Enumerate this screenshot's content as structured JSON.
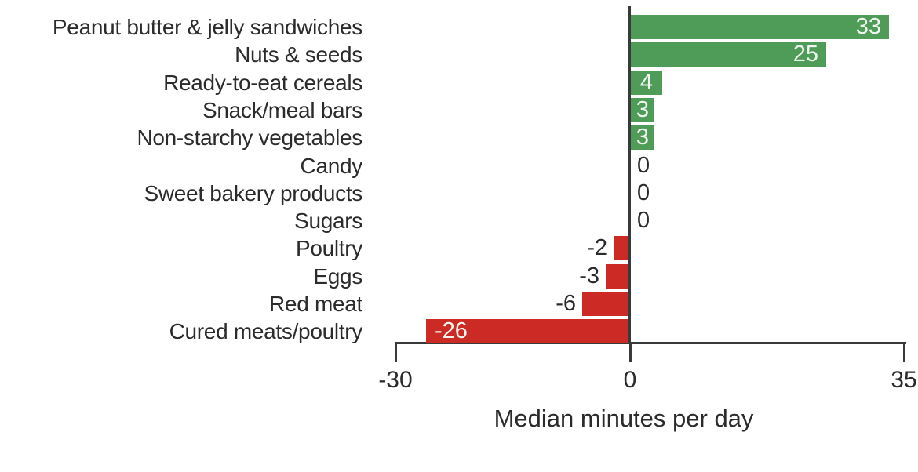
{
  "chart_data": {
    "type": "bar",
    "orientation": "horizontal",
    "title": "",
    "xlabel": "Median minutes per day",
    "ylabel": "",
    "xlim": [
      -30,
      35
    ],
    "grid": false,
    "legend": null,
    "xticks": [
      {
        "value": -30,
        "label": "-30"
      },
      {
        "value": 0,
        "label": "0"
      },
      {
        "value": 35,
        "label": "35"
      }
    ],
    "categories": [
      "Peanut butter & jelly sandwiches",
      "Nuts & seeds",
      "Ready-to-eat cereals",
      "Snack/meal bars",
      "Non-starchy vegetables",
      "Candy",
      "Sweet bakery products",
      "Sugars",
      "Poultry",
      "Eggs",
      "Red meat",
      "Cured meats/poultry"
    ],
    "values": [
      33,
      25,
      4,
      3,
      3,
      0,
      0,
      0,
      -2,
      -3,
      -6,
      -26
    ],
    "value_labels": [
      "33",
      "25",
      "4",
      "3",
      "3",
      "0",
      "0",
      "0",
      "-2",
      "-3",
      "-6",
      "-26"
    ],
    "colors": {
      "positive": "#4f9b58",
      "negative": "#cb2b24",
      "axis": "#3a3a3a",
      "label_text": "#2b2b2b",
      "value_text_inside": "#eef5ee"
    }
  }
}
